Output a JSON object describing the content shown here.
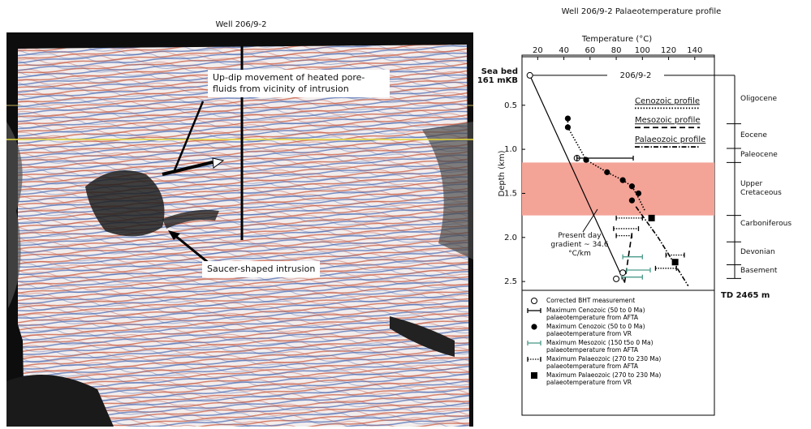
{
  "seismic": {
    "title": "Well 206/9-2",
    "annotations": [
      "Up-dip movement of heated pore-fluids from vicinity of intrusion",
      "Saucer-shaped intrusion"
    ]
  },
  "chart_data": {
    "type": "scatter",
    "title": "Well 206/9-2 Palaeotemperature profile",
    "x_label": "Temperature (°C)",
    "y_label": "Depth (km)",
    "well_label": "206/9-2",
    "seabed_label": [
      "Sea bed",
      "161 mKB"
    ],
    "td_label": "TD 2465 m",
    "xlim": [
      8,
      155
    ],
    "xticks": [
      20,
      40,
      60,
      80,
      100,
      120,
      140
    ],
    "ylim": [
      -0.05,
      2.6
    ],
    "yticks": [
      0.5,
      {
        "value": 1,
        "label": "1.0"
      },
      1.5,
      {
        "value": 2,
        "label": "2.0"
      },
      2.5
    ],
    "units": [
      {
        "name": "Oligocene",
        "top": 0.161,
        "base": 0.71
      },
      {
        "name": "Eocene",
        "top": 0.71,
        "base": 0.99
      },
      {
        "name": "Paleocene",
        "top": 0.99,
        "base": 1.15
      },
      {
        "name": "Upper Cretaceous",
        "top": 1.15,
        "base": 1.75,
        "color": "#f4a397"
      },
      {
        "name": "Carboniferous",
        "top": 1.75,
        "base": 2.05
      },
      {
        "name": "Devonian",
        "top": 2.05,
        "base": 2.31
      },
      {
        "name": "Basement",
        "top": 2.31,
        "base": 2.465
      }
    ],
    "gradient": {
      "label": "Present day gradient ~ 34.6 °C/km",
      "x": [
        14,
        86
      ],
      "y": [
        0.161,
        2.5
      ]
    },
    "profiles": [
      {
        "name": "Cenozoic profile",
        "dash": "1.5,2",
        "x": [
          43,
          43,
          57,
          73,
          85,
          92,
          97,
          102
        ],
        "y": [
          0.65,
          0.75,
          1.12,
          1.26,
          1.35,
          1.42,
          1.55,
          1.7
        ]
      },
      {
        "name": "Mesozoic profile",
        "dash": "7,4",
        "x": [
          92,
          86
        ],
        "y": [
          1.95,
          2.55
        ]
      },
      {
        "name": "Palaeozoic profile",
        "dash": "6,2,1.5,2",
        "x": [
          95,
          112,
          135
        ],
        "y": [
          1.65,
          2.0,
          2.55
        ]
      }
    ],
    "series": [
      {
        "name": "Corrected BHT measurement",
        "marker": "open-circle",
        "color": "#000000",
        "x": [
          14,
          50,
          85,
          80
        ],
        "y": [
          0.161,
          1.1,
          2.4,
          2.47
        ]
      },
      {
        "name": "Maximum Cenozoic (50 to 0 Ma) palaeotemperature from AFTA",
        "marker": "range",
        "color": "#000000",
        "y": [
          1.1
        ],
        "xmin": [
          50
        ],
        "xmax": [
          93
        ]
      },
      {
        "name": "Maximum Cenozoic (50 to 0 Ma) palaeotemperature from VR",
        "marker": "circle",
        "color": "#000000",
        "x": [
          43,
          43,
          57,
          73,
          85,
          92,
          97,
          92
        ],
        "y": [
          0.65,
          0.75,
          1.12,
          1.26,
          1.35,
          1.42,
          1.5,
          1.58
        ]
      },
      {
        "name": "Maximum Mesozoic (150 t5o 0 Ma) palaeotemperature from AFTA",
        "marker": "range",
        "color": "#4a9a8a",
        "y": [
          2.22,
          2.37,
          2.45
        ],
        "xmin": [
          85,
          88,
          84
        ],
        "xmax": [
          100,
          106,
          100
        ]
      },
      {
        "name": "Maximum Palaeozoic (270 to 230 Ma) palaeotemperature from AFTA",
        "marker": "range-dotted",
        "color": "#000000",
        "y": [
          1.78,
          1.9,
          1.98,
          2.2,
          2.35
        ],
        "xmin": [
          80,
          78,
          80,
          118,
          110
        ],
        "xmax": [
          100,
          97,
          92,
          132,
          126
        ]
      },
      {
        "name": "Maximum Palaeozoic (270 to 230 Ma) palaeotemperature from VR",
        "marker": "square",
        "color": "#000000",
        "x": [
          107,
          125
        ],
        "y": [
          1.78,
          2.28
        ]
      }
    ]
  }
}
